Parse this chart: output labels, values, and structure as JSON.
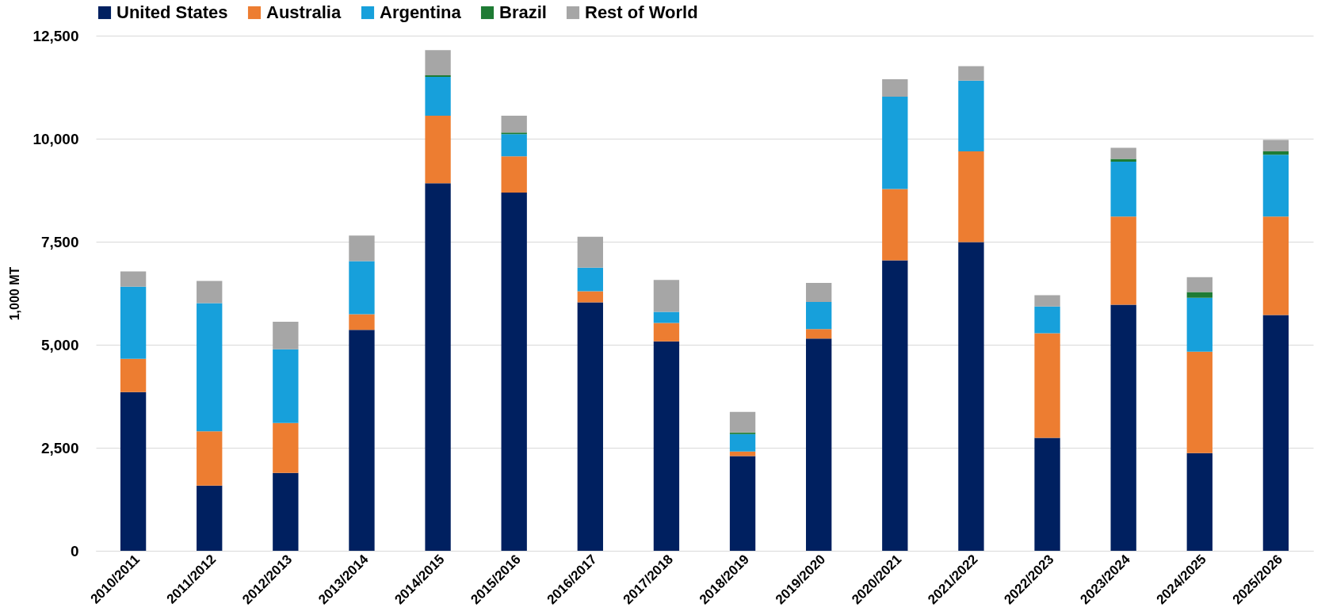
{
  "chart_data": {
    "type": "bar",
    "stacked": true,
    "ylabel": "1,000 MT",
    "categories": [
      "2010/2011",
      "2011/2012",
      "2012/2013",
      "2013/2014",
      "2014/2015",
      "2015/2016",
      "2016/2017",
      "2017/2018",
      "2018/2019",
      "2019/2020",
      "2020/2021",
      "2021/2022",
      "2022/2023",
      "2023/2024",
      "2024/2025",
      "2025/2026"
    ],
    "series": [
      {
        "name": "United States",
        "color": "#002060",
        "values": [
          3850,
          1580,
          1890,
          5360,
          8920,
          8690,
          6030,
          5080,
          2300,
          5150,
          7050,
          7490,
          2740,
          5970,
          2370,
          5720
        ]
      },
      {
        "name": "Australia",
        "color": "#ed7d31",
        "values": [
          810,
          1320,
          1210,
          380,
          1640,
          880,
          270,
          450,
          110,
          230,
          1730,
          2200,
          2540,
          2140,
          2460,
          2390
        ]
      },
      {
        "name": "Argentina",
        "color": "#17a0db",
        "values": [
          1750,
          3110,
          1790,
          1290,
          940,
          540,
          570,
          270,
          420,
          660,
          2240,
          1720,
          650,
          1330,
          1310,
          1500
        ]
      },
      {
        "name": "Brazil",
        "color": "#1e7b34",
        "values": [
          0,
          0,
          0,
          0,
          40,
          40,
          0,
          0,
          40,
          0,
          0,
          0,
          0,
          70,
          140,
          80
        ]
      },
      {
        "name": "Rest of World",
        "color": "#a6a6a6",
        "values": [
          370,
          540,
          670,
          620,
          610,
          410,
          750,
          770,
          500,
          460,
          420,
          350,
          270,
          270,
          360,
          280
        ]
      }
    ],
    "ylim": [
      0,
      12500
    ],
    "yticks": [
      0,
      {
        "value": 2500,
        "label": "2,500"
      },
      {
        "value": 5000,
        "label": "5,000"
      },
      {
        "value": 7500,
        "label": "7,500"
      },
      {
        "value": 10000,
        "label": "10,000"
      },
      {
        "value": 12500,
        "label": "12,500"
      }
    ],
    "grid": "y",
    "legend": "top"
  }
}
